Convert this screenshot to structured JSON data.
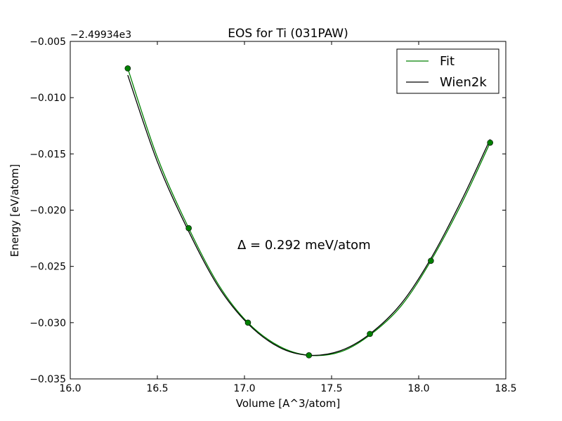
{
  "chart_data": {
    "type": "line",
    "title": "EOS for Ti (031PAW)",
    "xlabel": "Volume [A^3/atom]",
    "ylabel": "Energy [eV/atom]",
    "offset_label": "−2.49934e3",
    "xlim": [
      16.0,
      18.5
    ],
    "ylim": [
      -0.035,
      -0.005
    ],
    "xticks": [
      16.0,
      16.5,
      17.0,
      17.5,
      18.0,
      18.5
    ],
    "xtick_labels": [
      "16.0",
      "16.5",
      "17.0",
      "17.5",
      "18.0",
      "18.5"
    ],
    "yticks": [
      -0.035,
      -0.03,
      -0.025,
      -0.02,
      -0.015,
      -0.01,
      -0.005
    ],
    "ytick_labels": [
      "−0.035",
      "−0.030",
      "−0.025",
      "−0.020",
      "−0.015",
      "−0.010",
      "−0.005"
    ],
    "grid": false,
    "legend_position": "top-right",
    "annotation": "Δ = 0.292 meV/atom",
    "series": [
      {
        "name": "Fit",
        "kind": "line",
        "color": "#008000",
        "x": [
          16.33,
          16.5,
          16.68,
          16.85,
          17.02,
          17.2,
          17.37,
          17.55,
          17.72,
          17.9,
          18.07,
          18.25,
          18.41
        ],
        "y": [
          -0.0074,
          -0.0153,
          -0.0216,
          -0.0266,
          -0.03,
          -0.0321,
          -0.0329,
          -0.0326,
          -0.0311,
          -0.0285,
          -0.0245,
          -0.0193,
          -0.014
        ]
      },
      {
        "name": "Wien2k",
        "kind": "line",
        "color": "#000000",
        "x": [
          16.33,
          16.5,
          16.68,
          16.85,
          17.02,
          17.2,
          17.37,
          17.55,
          17.72,
          17.9,
          18.07,
          18.25,
          18.41
        ],
        "y": [
          -0.008,
          -0.0157,
          -0.0219,
          -0.0268,
          -0.0301,
          -0.0322,
          -0.0329,
          -0.0325,
          -0.031,
          -0.0283,
          -0.0243,
          -0.019,
          -0.0137
        ]
      },
      {
        "kind": "points",
        "color": "#008000",
        "x": [
          16.33,
          16.68,
          17.02,
          17.37,
          17.72,
          18.07,
          18.41
        ],
        "y": [
          -0.0074,
          -0.0216,
          -0.03,
          -0.0329,
          -0.031,
          -0.0245,
          -0.014
        ]
      }
    ]
  }
}
